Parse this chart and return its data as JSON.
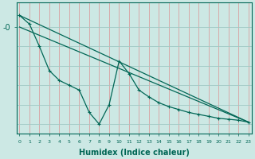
{
  "bg_color": "#cce8e4",
  "line_color": "#006655",
  "vline_color": "#d8a0a0",
  "hline_color": "#a0c8c4",
  "xlabel": "Humidex (Indice chaleur)",
  "ylabel": "-0",
  "ylim": [
    -11,
    2.5
  ],
  "xlim": [
    -0.3,
    23.3
  ],
  "trend1_x": [
    0,
    1,
    23
  ],
  "trend1_y": [
    1.2,
    1.2,
    -9.8
  ],
  "trend2_x": [
    0,
    1,
    23
  ],
  "trend2_y": [
    0.3,
    0.3,
    -9.8
  ],
  "jagged_x": [
    0,
    1,
    2,
    3,
    4,
    5,
    6,
    7,
    8,
    9,
    10,
    11,
    12,
    13,
    14,
    15,
    16,
    17,
    18,
    19,
    20,
    21,
    22,
    23
  ],
  "jagged_y": [
    1.2,
    0.3,
    -2.0,
    -4.5,
    -5.5,
    -6.0,
    -6.5,
    -8.8,
    -10.0,
    -8.0,
    -3.5,
    -4.8,
    -6.5,
    -7.2,
    -7.8,
    -8.2,
    -8.5,
    -8.8,
    -9.0,
    -9.2,
    -9.4,
    -9.5,
    -9.6,
    -9.8
  ],
  "ytick_val": 0,
  "ytick_label": "-0"
}
